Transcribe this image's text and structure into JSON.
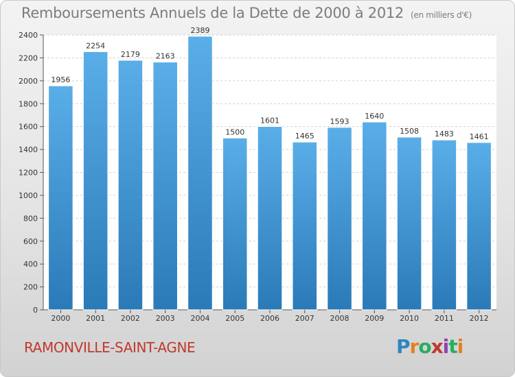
{
  "title": "Remboursements Annuels de la Dette de 2000 à 2012",
  "unit_note": "(en milliers d'€)",
  "commune": "RAMONVILLE-SAINT-AGNE",
  "logo": {
    "letters": [
      "P",
      "r",
      "o",
      "x",
      "i",
      "t",
      "i"
    ],
    "colors": [
      "#2e86c1",
      "#e67e22",
      "#27ae60",
      "#c0392b",
      "#8e44ad",
      "#27ae60",
      "#e67e22"
    ]
  },
  "colors": {
    "bar_top": "#5aaee8",
    "bar_bottom": "#2a7ab8",
    "title": "#7c7c7c",
    "commune": "#c0392b"
  },
  "chart_data": {
    "type": "bar",
    "categories": [
      "2000",
      "2001",
      "2002",
      "2003",
      "2004",
      "2005",
      "2006",
      "2007",
      "2008",
      "2009",
      "2010",
      "2011",
      "2012"
    ],
    "values": [
      1956,
      2254,
      2179,
      2163,
      2389,
      1500,
      1601,
      1465,
      1593,
      1640,
      1508,
      1483,
      1461
    ],
    "ylim": [
      0,
      2400
    ],
    "yticks": [
      0,
      200,
      400,
      600,
      800,
      1000,
      1200,
      1400,
      1600,
      1800,
      2000,
      2200,
      2400
    ],
    "grid": true
  }
}
